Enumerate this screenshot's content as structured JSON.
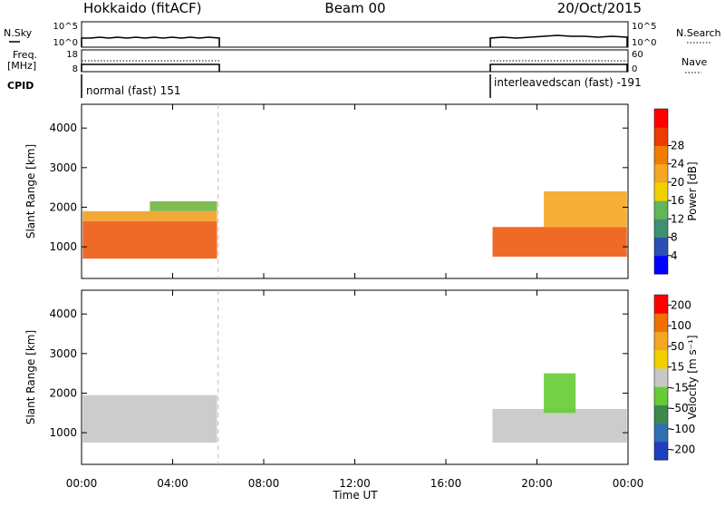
{
  "header": {
    "station": "Hokkaido (fitACF)",
    "beam": "Beam 00",
    "date": "20/Oct/2015"
  },
  "top_panels": {
    "nsky_label": "N.Sky",
    "nsearch_label": "N.Search",
    "nsky_ticks": [
      "10^5",
      "10^0"
    ],
    "nsearch_ticks": [
      "10^5",
      "10^0"
    ],
    "freq_label_1": "Freq.",
    "freq_label_2": "[MHz]",
    "freq_ticks": [
      "18",
      "8"
    ],
    "nave_label": "Nave",
    "nave_ticks": [
      "60",
      "0"
    ],
    "cpid_label": "CPID",
    "cpid_segments": [
      {
        "label": "normal (fast) 151",
        "start_hour": 0,
        "end_hour": 6
      },
      {
        "label": "interleavedscan (fast) -191",
        "start_hour": 18,
        "end_hour": 24
      }
    ]
  },
  "chart_data": [
    {
      "type": "heatmap",
      "name": "power-panel",
      "ylabel": "Slant Range [km]",
      "yticks": [
        "1000",
        "2000",
        "3000",
        "4000"
      ],
      "ylim": [
        200,
        4600
      ],
      "xlim": [
        0,
        24
      ],
      "colorbar_label": "Power [dB]",
      "colorbar_ticks": [
        "4",
        "8",
        "12",
        "16",
        "20",
        "24",
        "28"
      ],
      "colorbar_colors": [
        "#0000ff",
        "#2c4fb4",
        "#3f8f73",
        "#61b55a",
        "#f2d000",
        "#f5a623",
        "#f07d00",
        "#ee3a00",
        "#ff0000"
      ],
      "data_windows_hours": [
        [
          0,
          6
        ],
        [
          18,
          24
        ]
      ],
      "regions": [
        {
          "x0": 0.05,
          "x1": 5.95,
          "y0": 700,
          "y1": 1650,
          "color": "#ee5a10"
        },
        {
          "x0": 0.05,
          "x1": 5.95,
          "y0": 1650,
          "y1": 1900,
          "color": "#f2a020"
        },
        {
          "x0": 3.0,
          "x1": 5.95,
          "y0": 1900,
          "y1": 2150,
          "color": "#72b53e"
        },
        {
          "x0": 18.05,
          "x1": 23.95,
          "y0": 750,
          "y1": 1500,
          "color": "#ee5a10"
        },
        {
          "x0": 20.3,
          "x1": 23.95,
          "y0": 1500,
          "y1": 2400,
          "color": "#f5a623"
        }
      ]
    },
    {
      "type": "heatmap",
      "name": "velocity-panel",
      "ylabel": "Slant Range [km]",
      "yticks": [
        "1000",
        "2000",
        "3000",
        "4000"
      ],
      "ylim": [
        200,
        4600
      ],
      "xlim": [
        0,
        24
      ],
      "colorbar_label": "Velocity [m s⁻¹]",
      "colorbar_ticks": [
        "200",
        "100",
        "50",
        "15",
        "-15",
        "-50",
        "-100",
        "-200"
      ],
      "colorbar_colors": [
        "#1f3fbf",
        "#2f6fb0",
        "#3d8a4f",
        "#66cc33",
        "#c8c8c8",
        "#f2d000",
        "#f5a623",
        "#f07000",
        "#ff0000"
      ],
      "data_windows_hours": [
        [
          0,
          6
        ],
        [
          18,
          24
        ]
      ],
      "regions": [
        {
          "x0": 0.05,
          "x1": 5.95,
          "y0": 750,
          "y1": 1950,
          "color": "#c6c6c6"
        },
        {
          "x0": 18.05,
          "x1": 23.95,
          "y0": 750,
          "y1": 1600,
          "color": "#c6c6c6"
        },
        {
          "x0": 20.3,
          "x1": 21.7,
          "y0": 1500,
          "y1": 2500,
          "color": "#66cc33"
        }
      ]
    }
  ],
  "x_axis": {
    "ticks": [
      "00:00",
      "04:00",
      "08:00",
      "12:00",
      "16:00",
      "20:00",
      "00:00"
    ],
    "label": "Time UT"
  }
}
